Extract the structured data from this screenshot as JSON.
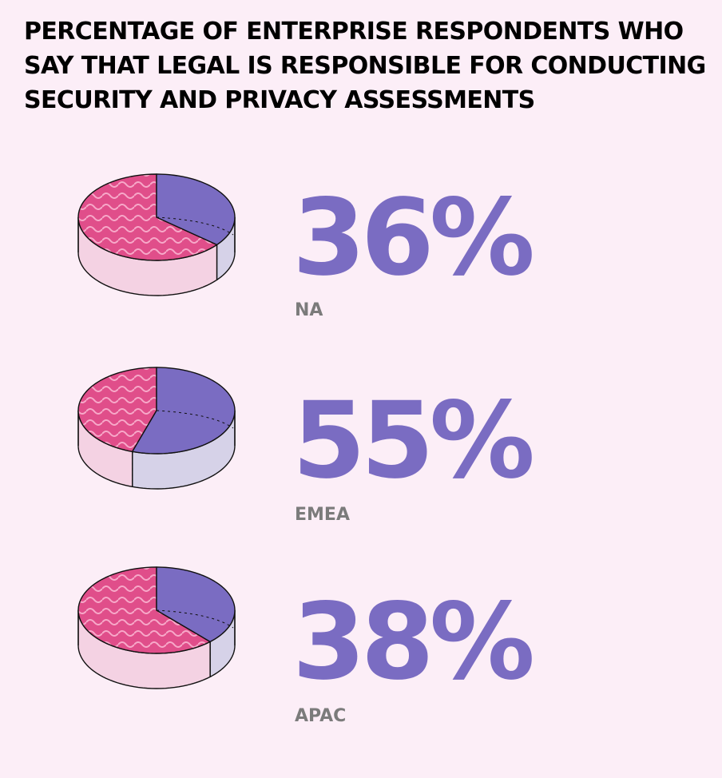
{
  "chart_data": {
    "type": "pie",
    "title": "PERCENTAGE OF ENTERPRISE RESPONDENTS WHO SAY THAT LEGAL IS RESPONSIBLE FOR CONDUCTING SECURITY AND PRIVACY ASSESSMENTS",
    "items": [
      {
        "region": "NA",
        "value": 36,
        "label": "36%"
      },
      {
        "region": "EMEA",
        "value": 55,
        "label": "55%"
      },
      {
        "region": "APAC",
        "value": 38,
        "label": "38%"
      }
    ]
  },
  "colors": {
    "background": "#fceef7",
    "highlight": "#7a6cc2",
    "highlight_side": "#d6d2e8",
    "rest_top": "#e04e8a",
    "rest_side": "#f4d2e3",
    "wave": "#f7a9c9",
    "region_label": "#7b7b7b"
  }
}
